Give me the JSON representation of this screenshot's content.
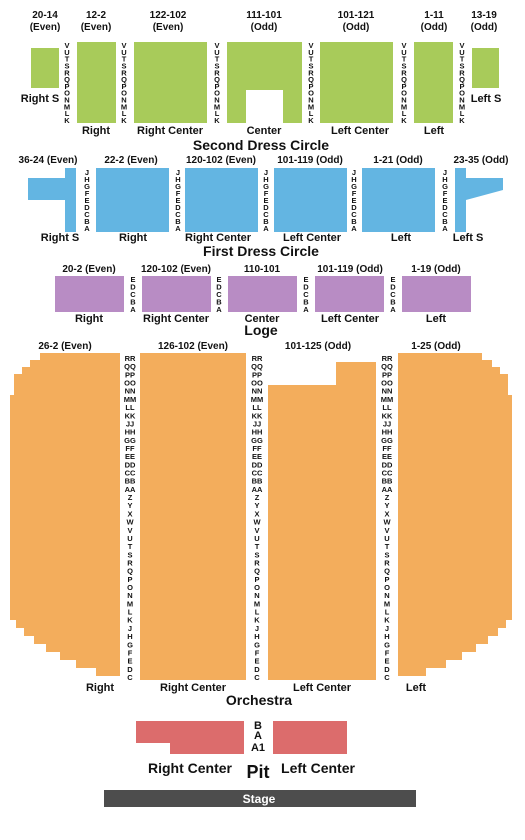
{
  "colors": {
    "second_dress_circle": "#a8cb5a",
    "first_dress_circle": "#63b5e2",
    "loge": "#b88cc4",
    "orchestra": "#f3ad5c",
    "pit": "#dc6c6c",
    "stage": "#4d4d4d"
  },
  "second_dress_circle": {
    "title": "Second Dress Circle",
    "rows_desc": [
      "V",
      "U",
      "T",
      "S",
      "R",
      "Q",
      "P",
      "O",
      "N",
      "M",
      "L",
      "K"
    ],
    "sections": [
      {
        "id": "right-s",
        "range_top": "20-14",
        "range_bottom": "(Even)",
        "label": "Right S"
      },
      {
        "id": "right",
        "range_top": "12-2",
        "range_bottom": "(Even)",
        "label": "Right"
      },
      {
        "id": "right-center",
        "range_top": "122-102",
        "range_bottom": "(Even)",
        "label": "Right Center"
      },
      {
        "id": "center",
        "range_top": "111-101",
        "range_bottom": "(Odd)",
        "label": "Center"
      },
      {
        "id": "left-center",
        "range_top": "101-121",
        "range_bottom": "(Odd)",
        "label": "Left Center"
      },
      {
        "id": "left",
        "range_top": "1-11",
        "range_bottom": "(Odd)",
        "label": "Left"
      },
      {
        "id": "left-s",
        "range_top": "13-19",
        "range_bottom": "(Odd)",
        "label": "Left S"
      }
    ]
  },
  "first_dress_circle": {
    "title": "First Dress Circle",
    "rows_desc": [
      "J",
      "H",
      "G",
      "F",
      "E",
      "D",
      "C",
      "B",
      "A"
    ],
    "sections": [
      {
        "id": "right-s",
        "range": "36-24 (Even)",
        "label": "Right S"
      },
      {
        "id": "right",
        "range": "22-2 (Even)",
        "label": "Right"
      },
      {
        "id": "right-center",
        "range": "120-102 (Even)",
        "label": "Right Center"
      },
      {
        "id": "left-center",
        "range": "101-119 (Odd)",
        "label": "Left Center"
      },
      {
        "id": "left",
        "range": "1-21 (Odd)",
        "label": "Left"
      },
      {
        "id": "left-s",
        "range": "23-35 (Odd)",
        "label": "Left S"
      }
    ]
  },
  "loge": {
    "title": "Loge",
    "rows_desc": [
      "E",
      "D",
      "C",
      "B",
      "A"
    ],
    "sections": [
      {
        "id": "right",
        "range": "20-2 (Even)",
        "label": "Right"
      },
      {
        "id": "right-center",
        "range": "120-102 (Even)",
        "label": "Right Center"
      },
      {
        "id": "center",
        "range": "110-101",
        "label": "Center"
      },
      {
        "id": "left-center",
        "range": "101-119 (Odd)",
        "label": "Left Center"
      },
      {
        "id": "left",
        "range": "1-19 (Odd)",
        "label": "Left"
      }
    ]
  },
  "orchestra": {
    "title": "Orchestra",
    "rows_desc": [
      "RR",
      "QQ",
      "PP",
      "OO",
      "NN",
      "MM",
      "LL",
      "KK",
      "JJ",
      "HH",
      "GG",
      "FF",
      "EE",
      "DD",
      "CC",
      "BB",
      "AA",
      "Z",
      "Y",
      "X",
      "W",
      "V",
      "U",
      "T",
      "S",
      "R",
      "Q",
      "P",
      "O",
      "N",
      "M",
      "L",
      "K",
      "J",
      "H",
      "G",
      "F",
      "E",
      "D",
      "C"
    ],
    "sections": [
      {
        "id": "right",
        "range": "26-2 (Even)",
        "label": "Right"
      },
      {
        "id": "right-center",
        "range": "126-102 (Even)",
        "label": "Right Center"
      },
      {
        "id": "left-center",
        "range": "101-125 (Odd)",
        "label": "Left Center"
      },
      {
        "id": "left",
        "range": "1-25 (Odd)",
        "label": "Left"
      }
    ]
  },
  "pit": {
    "title": "Pit",
    "rows_desc": [
      "B",
      "A",
      "A1"
    ],
    "sections": [
      {
        "id": "right-center",
        "label": "Right Center"
      },
      {
        "id": "left-center",
        "label": "Left Center"
      }
    ]
  },
  "stage": {
    "label": "Stage"
  }
}
